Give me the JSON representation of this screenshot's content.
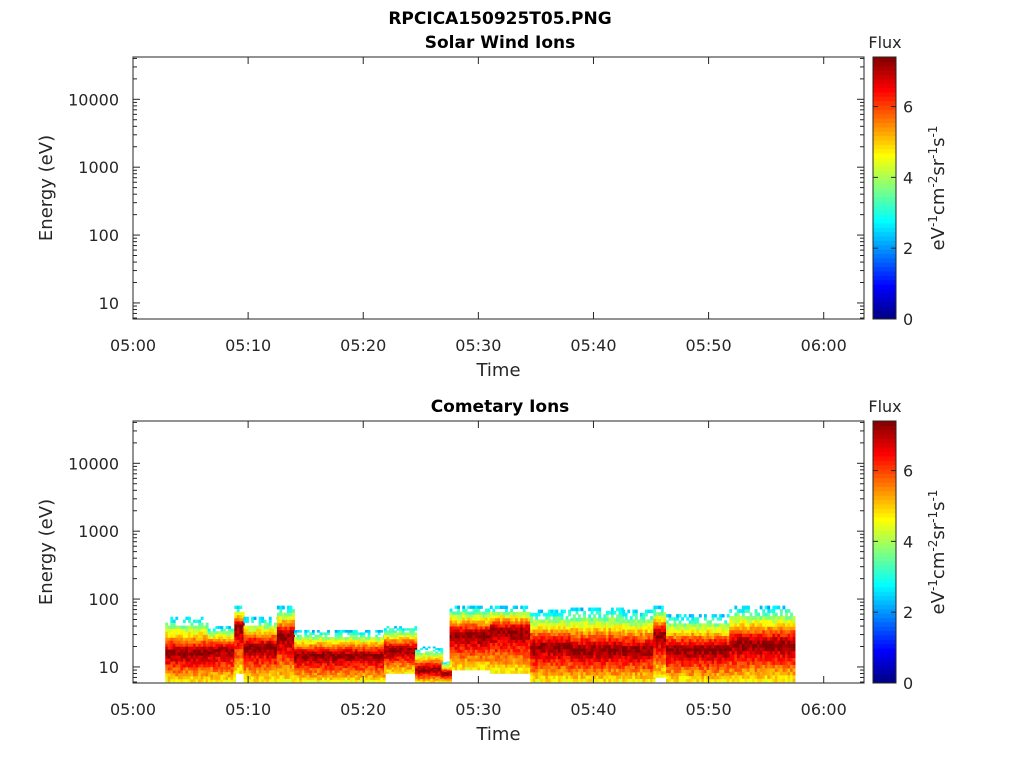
{
  "figure": {
    "title": "RPCICA150925T05.PNG"
  },
  "chart_data": [
    {
      "type": "heatmap",
      "title": "Solar Wind Ions",
      "xlabel": "Time",
      "ylabel": "Energy (eV)",
      "x_ticks": [
        "05:00",
        "05:10",
        "05:20",
        "05:30",
        "05:40",
        "05:50",
        "06:00"
      ],
      "x_tick_minutes": [
        0,
        10,
        20,
        30,
        40,
        50,
        60
      ],
      "xlim_minutes": [
        0,
        63.5
      ],
      "y_scale": "log",
      "y_ticks": [
        "10",
        "100",
        "1000",
        "10000"
      ],
      "y_tick_values": [
        10,
        100,
        1000,
        10000
      ],
      "ylim": [
        5.8,
        42000
      ],
      "grid": false,
      "colorbar": {
        "label": "Flux",
        "unit": "eV-1cm-2sr-1s-1",
        "ticks": [
          "0",
          "2",
          "4",
          "6"
        ],
        "tick_values": [
          0,
          2,
          4,
          6
        ],
        "range": [
          0,
          7.4
        ],
        "colormap": "jet"
      },
      "segments": []
    },
    {
      "type": "heatmap",
      "title": "Cometary Ions",
      "xlabel": "Time",
      "ylabel": "Energy (eV)",
      "x_ticks": [
        "05:00",
        "05:10",
        "05:20",
        "05:30",
        "05:40",
        "05:50",
        "06:00"
      ],
      "x_tick_minutes": [
        0,
        10,
        20,
        30,
        40,
        50,
        60
      ],
      "xlim_minutes": [
        0,
        63.5
      ],
      "y_scale": "log",
      "y_ticks": [
        "10",
        "100",
        "1000",
        "10000"
      ],
      "y_tick_values": [
        10,
        100,
        1000,
        10000
      ],
      "ylim": [
        5.8,
        42000
      ],
      "grid": false,
      "colorbar": {
        "label": "Flux",
        "unit": "eV-1cm-2sr-1s-1",
        "ticks": [
          "0",
          "2",
          "4",
          "6"
        ],
        "tick_values": [
          0,
          2,
          4,
          6
        ],
        "range": [
          0,
          7.4
        ],
        "colormap": "jet"
      },
      "segments": [
        {
          "t0": 2.8,
          "t1": 6.5,
          "e_top": 55,
          "e_peak": 16,
          "e_bottom": 6
        },
        {
          "t0": 6.5,
          "t1": 8.8,
          "e_top": 40,
          "e_peak": 18,
          "e_bottom": 6
        },
        {
          "t0": 8.8,
          "t1": 9.6,
          "e_top": 80,
          "e_peak": 40,
          "e_bottom": 8
        },
        {
          "t0": 9.6,
          "t1": 12.5,
          "e_top": 55,
          "e_peak": 20,
          "e_bottom": 6
        },
        {
          "t0": 12.5,
          "t1": 14.0,
          "e_top": 80,
          "e_peak": 30,
          "e_bottom": 6
        },
        {
          "t0": 14.0,
          "t1": 21.8,
          "e_top": 35,
          "e_peak": 15,
          "e_bottom": 6
        },
        {
          "t0": 21.8,
          "t1": 24.5,
          "e_top": 40,
          "e_peak": 18,
          "e_bottom": 8
        },
        {
          "t0": 24.5,
          "t1": 26.8,
          "e_top": 20,
          "e_peak": 9,
          "e_bottom": 6
        },
        {
          "t0": 26.8,
          "t1": 27.5,
          "e_top": 12,
          "e_peak": 8,
          "e_bottom": 6
        },
        {
          "t0": 27.5,
          "t1": 31.0,
          "e_top": 80,
          "e_peak": 30,
          "e_bottom": 9
        },
        {
          "t0": 31.0,
          "t1": 34.5,
          "e_top": 80,
          "e_peak": 35,
          "e_bottom": 8
        },
        {
          "t0": 34.5,
          "t1": 38.0,
          "e_top": 70,
          "e_peak": 20,
          "e_bottom": 6
        },
        {
          "t0": 38.0,
          "t1": 42.5,
          "e_top": 75,
          "e_peak": 18,
          "e_bottom": 6
        },
        {
          "t0": 42.5,
          "t1": 45.2,
          "e_top": 70,
          "e_peak": 18,
          "e_bottom": 6
        },
        {
          "t0": 45.2,
          "t1": 46.3,
          "e_top": 80,
          "e_peak": 30,
          "e_bottom": 7
        },
        {
          "t0": 46.3,
          "t1": 51.8,
          "e_top": 60,
          "e_peak": 18,
          "e_bottom": 6
        },
        {
          "t0": 51.8,
          "t1": 57.5,
          "e_top": 80,
          "e_peak": 22,
          "e_bottom": 6
        }
      ]
    }
  ]
}
